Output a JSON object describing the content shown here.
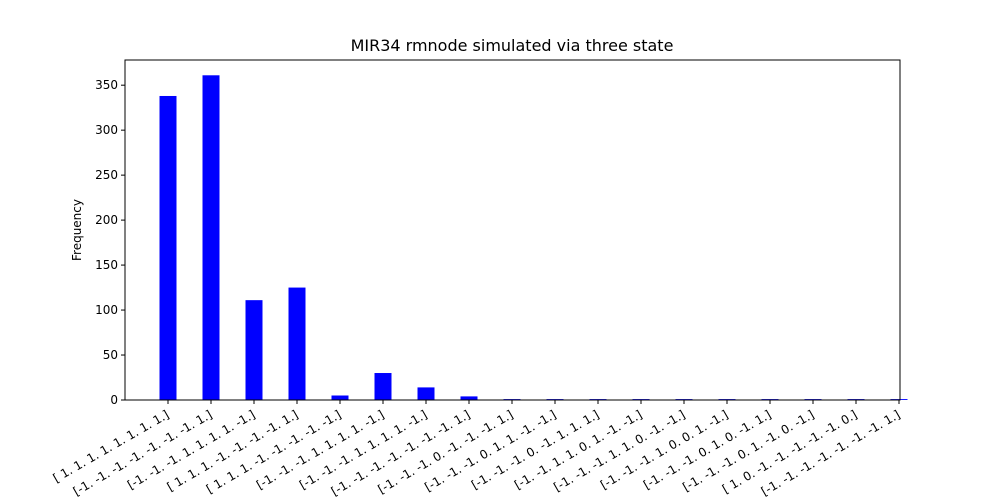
{
  "chart_data": {
    "type": "bar",
    "title": "MIR34 rmnode simulated via three state",
    "xlabel": "",
    "ylabel": "Frequency",
    "ylim": [
      0,
      378
    ],
    "yticks": [
      0,
      50,
      100,
      150,
      200,
      250,
      300,
      350
    ],
    "grid": false,
    "bar_color": "#0000ff",
    "categories": [
      "[ 1.  1.  1.  1.  1.  1.  1.  1.]",
      "[-1. -1. -1. -1. -1. -1. -1.  1.]",
      "[-1. -1. -1.  1.  1.  1.  1. -1.]",
      "[ 1.  1.  1. -1. -1. -1. -1.  1.]",
      "[ 1.  1.  1. -1. -1. -1. -1. -1.]",
      "[-1. -1. -1.  1.  1.  1.  1. -1.]",
      "[-1. -1. -1.  1.  1.  1.  1. -1.]",
      "[-1. -1. -1. -1. -1. -1. -1.  1.]",
      "[-1. -1. -1.  0. -1. -1. -1.  1.]",
      "[-1. -1. -1.  0.  1.  1. -1. -1.]",
      "[-1. -1. -1.  0. -1.  1.  1.  1.]",
      "[-1. -1.  1.  1.  0.  1. -1. -1.]",
      "[-1. -1. -1.  1.  1.  0. -1. -1.]",
      "[-1. -1. -1.  1.  0.  0.  1. -1.]",
      "[-1. -1. -1.  0.  1.  0. -1.  1.]",
      "[-1. -1. -1.  0.  1. -1.  0. -1.]",
      "[ 1.  0. -1. -1. -1. -1. -1.  0.]",
      "[-1. -1. -1. -1. -1. -1. -1.  1.]"
    ],
    "values": [
      338,
      361,
      111,
      125,
      5,
      30,
      14,
      4,
      1,
      1,
      1,
      1,
      1,
      1,
      1,
      1,
      1,
      1
    ]
  }
}
